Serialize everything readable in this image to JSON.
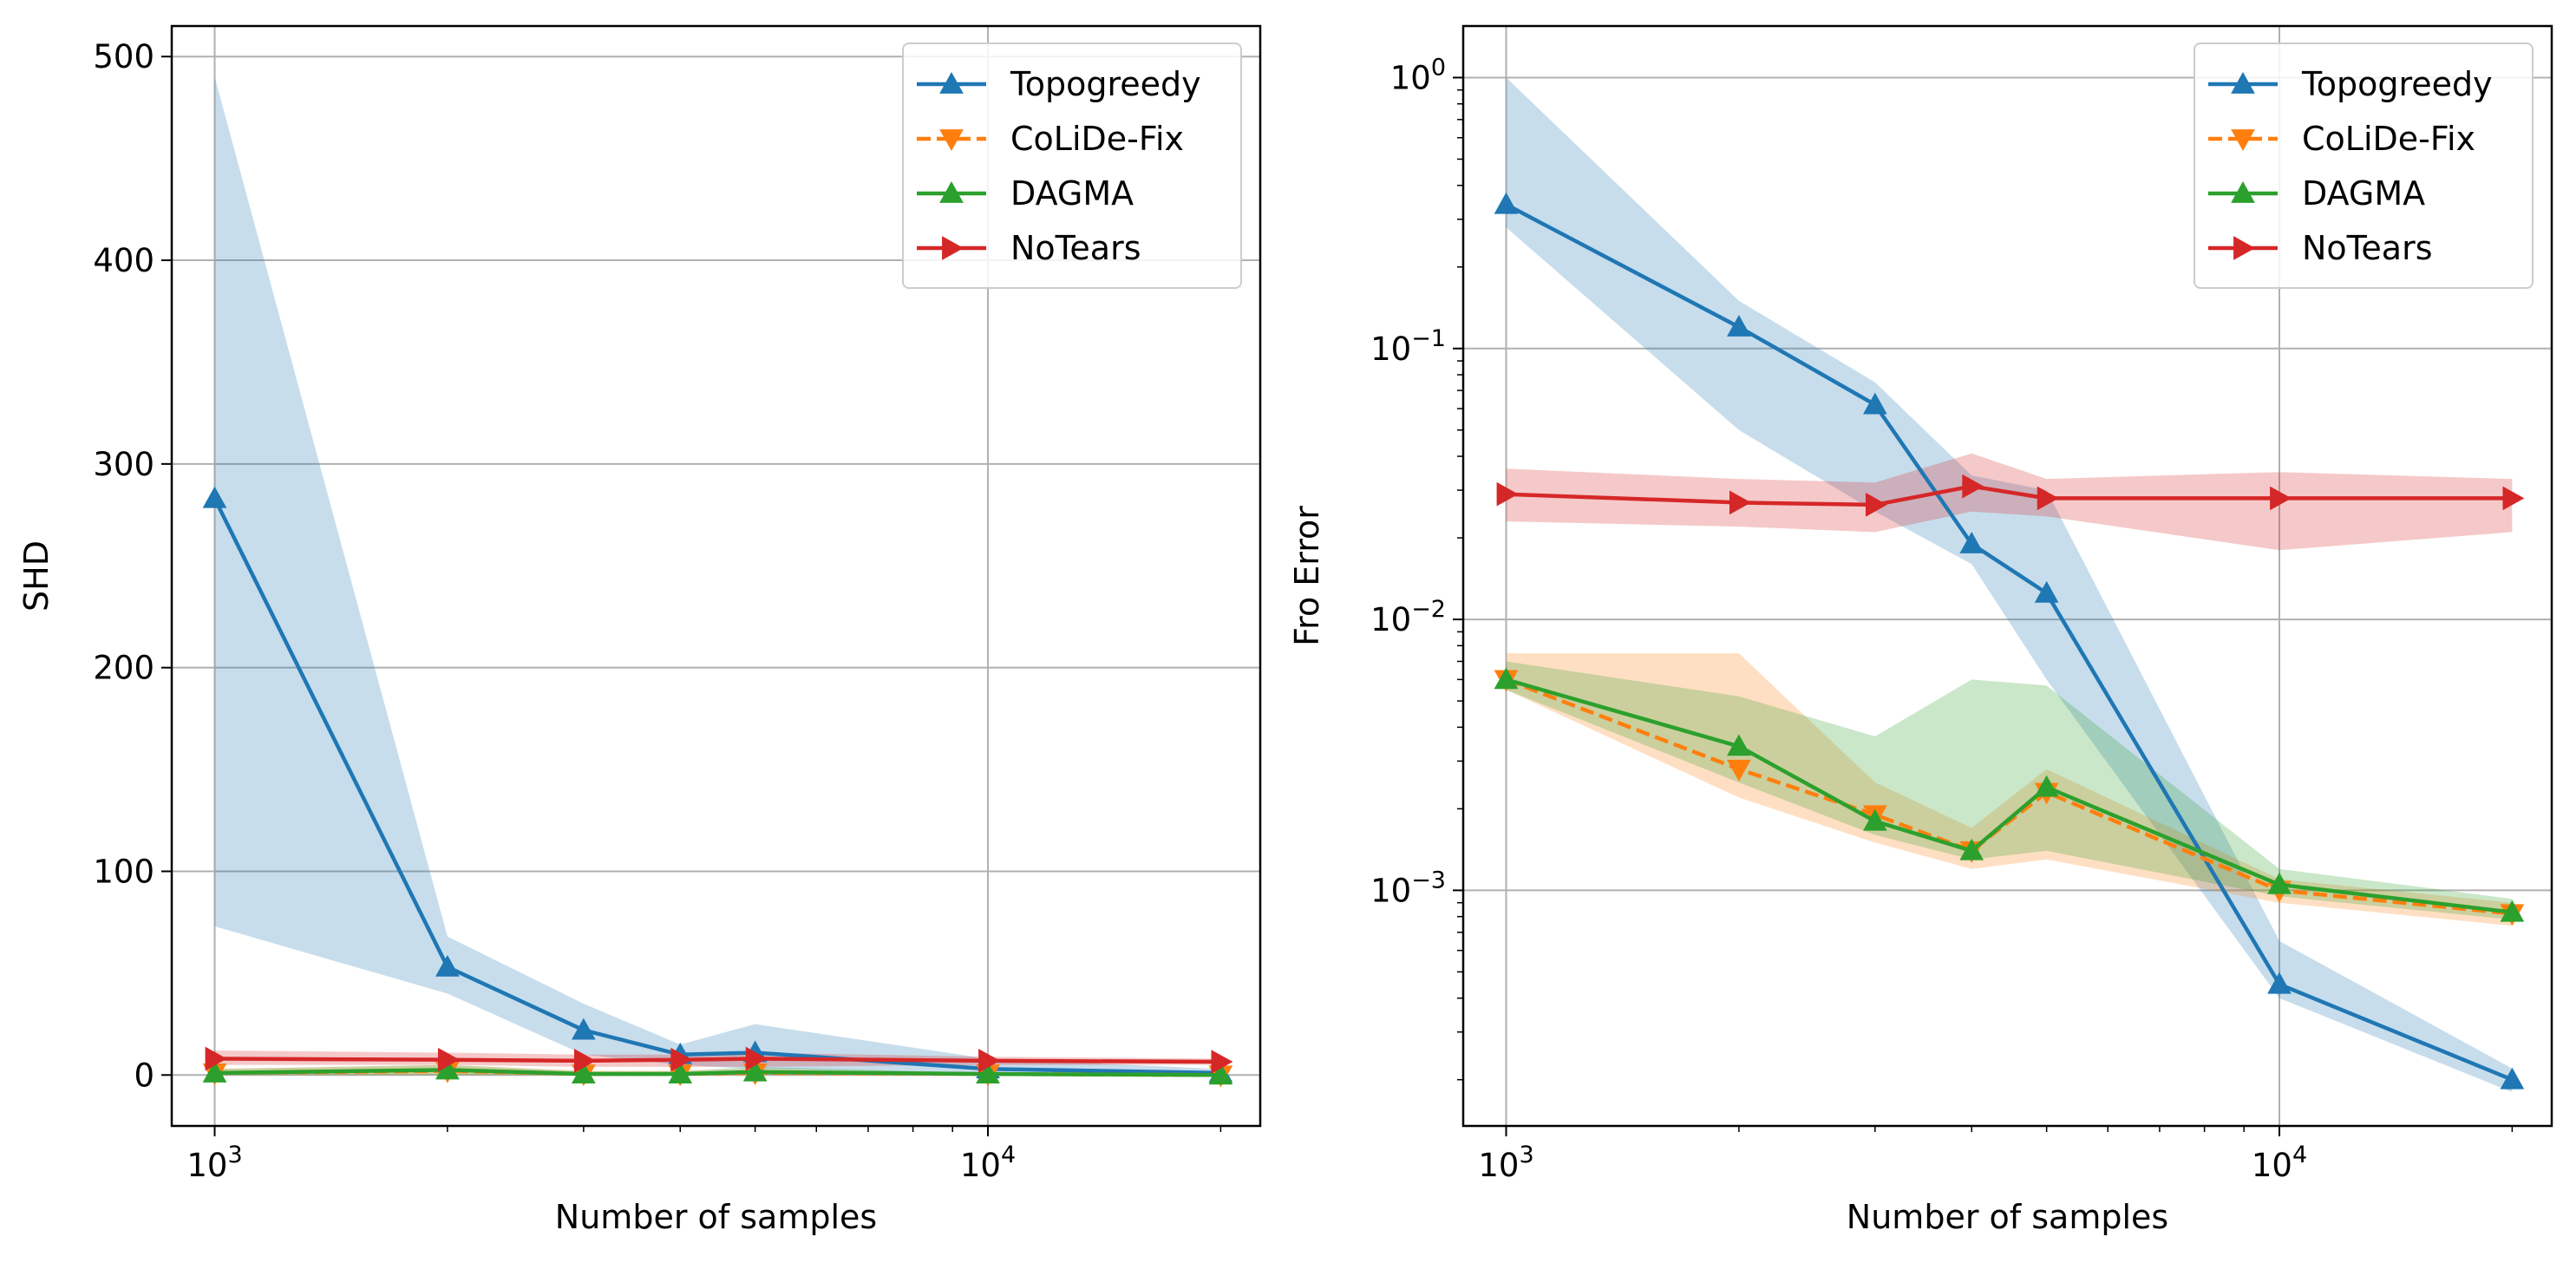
{
  "figure": {
    "panels": [
      {
        "xlabel": "Number of samples",
        "ylabel": "SHD"
      },
      {
        "xlabel": "Number of samples",
        "ylabel": "Fro Error"
      }
    ]
  },
  "chart_data": [
    {
      "type": "line",
      "xscale": "log",
      "yscale": "linear",
      "xlim": [
        880,
        22500
      ],
      "ylim": [
        -25,
        515
      ],
      "xticks": [
        {
          "value": 1000,
          "base": "10",
          "exp": "3"
        },
        {
          "value": 10000,
          "base": "10",
          "exp": "4"
        }
      ],
      "yticks": [
        {
          "value": 0,
          "label": "0"
        },
        {
          "value": 100,
          "label": "100"
        },
        {
          "value": 200,
          "label": "200"
        },
        {
          "value": 300,
          "label": "300"
        },
        {
          "value": 400,
          "label": "400"
        },
        {
          "value": 500,
          "label": "500"
        }
      ],
      "xlabel": "Number of samples",
      "ylabel": "SHD",
      "grid": true,
      "legend_position": "top-right",
      "x": [
        1000,
        2000,
        3000,
        4000,
        5000,
        10000,
        20000
      ],
      "series": [
        {
          "name": "Topogreedy",
          "color": "#1f77b4",
          "marker": "triangle-up",
          "dash": false,
          "values": [
            283,
            53,
            22,
            10,
            11,
            3,
            1
          ],
          "lower": [
            73,
            40,
            10,
            5,
            3,
            1,
            0
          ],
          "upper": [
            490,
            68,
            35,
            15,
            25,
            8,
            3
          ]
        },
        {
          "name": "CoLiDe-Fix",
          "color": "#ff7f0e",
          "marker": "triangle-down",
          "dash": true,
          "values": [
            1,
            2,
            0.5,
            0.5,
            1,
            0.5,
            0
          ],
          "lower": [
            0,
            0,
            0,
            0,
            0,
            0,
            0
          ],
          "upper": [
            3,
            5,
            2,
            2,
            3,
            1,
            0.5
          ]
        },
        {
          "name": "DAGMA",
          "color": "#2ca02c",
          "marker": "triangle-up",
          "dash": false,
          "values": [
            1,
            2.5,
            0.5,
            0.5,
            1.5,
            0.5,
            0
          ],
          "lower": [
            0,
            0,
            0,
            0,
            0,
            0,
            0
          ],
          "upper": [
            3,
            5,
            2,
            2,
            4,
            1,
            0.5
          ]
        },
        {
          "name": "NoTears",
          "color": "#d62728",
          "marker": "triangle-right",
          "dash": false,
          "values": [
            8,
            7.5,
            7,
            7.5,
            8,
            7,
            6.5
          ],
          "lower": [
            5,
            5,
            4,
            4,
            4,
            5,
            5
          ],
          "upper": [
            12,
            11,
            10,
            10,
            11,
            9,
            8
          ]
        }
      ]
    },
    {
      "type": "line",
      "xscale": "log",
      "yscale": "log",
      "xlim": [
        880,
        22500
      ],
      "ylim": [
        0.000135,
        1.55
      ],
      "xticks": [
        {
          "value": 1000,
          "base": "10",
          "exp": "3"
        },
        {
          "value": 10000,
          "base": "10",
          "exp": "4"
        }
      ],
      "yticks": [
        {
          "value": 0.001,
          "base": "10",
          "exp": "−3"
        },
        {
          "value": 0.01,
          "base": "10",
          "exp": "−2"
        },
        {
          "value": 0.1,
          "base": "10",
          "exp": "−1"
        },
        {
          "value": 1,
          "base": "10",
          "exp": "0"
        }
      ],
      "xlabel": "Number of samples",
      "ylabel": "Fro Error",
      "grid": true,
      "legend_position": "top-right",
      "x": [
        1000,
        2000,
        3000,
        4000,
        5000,
        10000,
        20000
      ],
      "series": [
        {
          "name": "Topogreedy",
          "color": "#1f77b4",
          "marker": "triangle-up",
          "dash": false,
          "values": [
            0.34,
            0.12,
            0.062,
            0.019,
            0.0125,
            0.00045,
            0.0002
          ],
          "lower": [
            0.28,
            0.05,
            0.025,
            0.016,
            0.006,
            0.0004,
            0.00018
          ],
          "upper": [
            1.0,
            0.15,
            0.075,
            0.034,
            0.03,
            0.00065,
            0.00022
          ]
        },
        {
          "name": "CoLiDe-Fix",
          "color": "#ff7f0e",
          "marker": "triangle-down",
          "dash": true,
          "values": [
            0.006,
            0.0028,
            0.0019,
            0.0014,
            0.0023,
            0.001,
            0.00082
          ],
          "lower": [
            0.0055,
            0.0022,
            0.0015,
            0.0012,
            0.0013,
            0.0009,
            0.00074
          ],
          "upper": [
            0.0075,
            0.0075,
            0.0025,
            0.0017,
            0.0028,
            0.0011,
            0.0009
          ]
        },
        {
          "name": "DAGMA",
          "color": "#2ca02c",
          "marker": "triangle-up",
          "dash": false,
          "values": [
            0.006,
            0.0034,
            0.0018,
            0.0014,
            0.0024,
            0.00105,
            0.00083
          ],
          "lower": [
            0.0055,
            0.0025,
            0.0016,
            0.0013,
            0.0014,
            0.00095,
            0.00078
          ],
          "upper": [
            0.007,
            0.0052,
            0.0037,
            0.006,
            0.0057,
            0.0012,
            0.00093
          ]
        },
        {
          "name": "NoTears",
          "color": "#d62728",
          "marker": "triangle-right",
          "dash": false,
          "values": [
            0.029,
            0.027,
            0.0265,
            0.031,
            0.028,
            0.028,
            0.028
          ],
          "lower": [
            0.023,
            0.022,
            0.021,
            0.025,
            0.024,
            0.018,
            0.021
          ],
          "upper": [
            0.036,
            0.033,
            0.032,
            0.041,
            0.033,
            0.035,
            0.033
          ]
        }
      ]
    }
  ]
}
